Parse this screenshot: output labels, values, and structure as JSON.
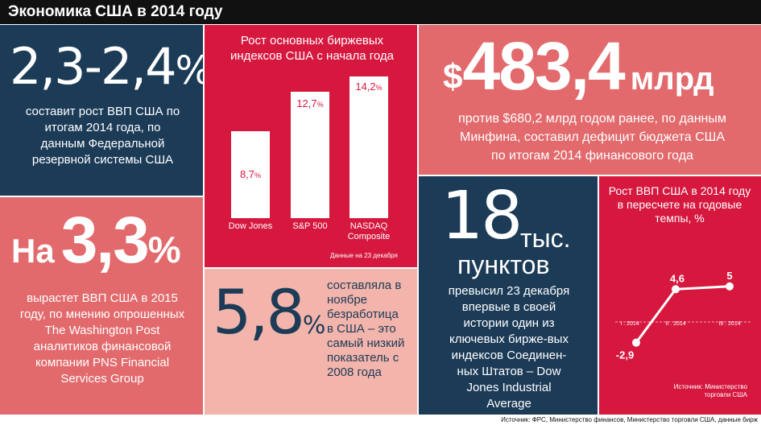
{
  "title": "Экономика США в 2014 году",
  "gdp_forecast": {
    "value": "2,3-2,4",
    "unit": "%",
    "text": "составит рост ВВП США по итогам 2014 года, по данным Федеральной резервной системы США"
  },
  "indices": {
    "title": "Рост основных биржевых индексов США с начала года",
    "note": "Данные на 23 декабря"
  },
  "deficit": {
    "currency": "$",
    "value": "483,4",
    "unit": "млрд",
    "text": "против $680,2 млрд годом ранее, по данным Минфина, составил дефицит бюджета США по итогам 2014 финансового года"
  },
  "gdp_2015": {
    "prefix": "На",
    "value": "3,3",
    "unit": "%",
    "text": "вырастет ВВП США в 2015 году, по мнению опрошенных The Washington Post аналитиков финансовой компании PNS Financial Services Group"
  },
  "unemployment": {
    "value": "5,8",
    "unit": "%",
    "text": "составляла в ноябре безработица в США – это самый низкий показатель с 2008 года"
  },
  "dow": {
    "value": "18",
    "unit1": "тыс.",
    "unit2": "пунктов",
    "text": "превысил 23 декабря впервые в своей истории один из ключевых бирже-вых индексов Соединен-ных Штатов – Dow Jones Industrial Average"
  },
  "gdp_growth": {
    "title": "Рост ВВП США в 2014 году в пересчете на годовые темпы, %",
    "source": "Источник: Министерство торговли США"
  },
  "footer_source": "Источник: ФРС, Министерство финансов, Министерство торговли США, данные бирж",
  "chart_data": [
    {
      "type": "bar",
      "title": "Рост основных биржевых индексов США с начала года",
      "categories": [
        "Dow Jones",
        "S&P 500",
        "NASDAQ Composite"
      ],
      "values": [
        8.7,
        12.7,
        14.2
      ],
      "value_labels": [
        "8,7",
        "12,7",
        "14,2"
      ],
      "unit": "%"
    },
    {
      "type": "line",
      "title": "Рост ВВП США в 2014 году в пересчете на годовые темпы, %",
      "categories": [
        "I . 2014",
        "II . 2014",
        "III . 2014"
      ],
      "values": [
        -2.9,
        4.6,
        5
      ],
      "value_labels": [
        "-2,9",
        "4,6",
        "5"
      ]
    }
  ]
}
